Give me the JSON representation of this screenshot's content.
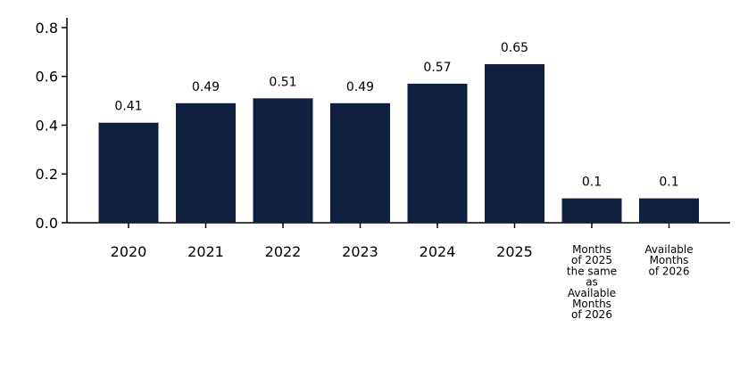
{
  "chart_data": {
    "type": "bar",
    "title": "",
    "xlabel": "",
    "ylabel": "",
    "categories": [
      [
        "2020"
      ],
      [
        "2021"
      ],
      [
        "2022"
      ],
      [
        "2023"
      ],
      [
        "2024"
      ],
      [
        "2025"
      ],
      [
        "Months",
        "of 2025",
        "the same",
        "as",
        "Available",
        "Months",
        "of 2026"
      ],
      [
        "Available",
        "Months",
        "of 2026"
      ]
    ],
    "values": [
      0.41,
      0.49,
      0.51,
      0.49,
      0.57,
      0.65,
      0.1,
      0.1
    ],
    "data_labels": [
      "0.41",
      "0.49",
      "0.51",
      "0.49",
      "0.57",
      "0.65",
      "0.1",
      "0.1"
    ],
    "ylim": [
      0,
      0.84
    ],
    "yticks": [
      0.0,
      0.2,
      0.4,
      0.6,
      0.8
    ],
    "ytick_labels": [
      "0.0",
      "0.2",
      "0.4",
      "0.6",
      "0.8"
    ],
    "bar_color": "#0f1f40",
    "grid": false,
    "legend": "none"
  }
}
